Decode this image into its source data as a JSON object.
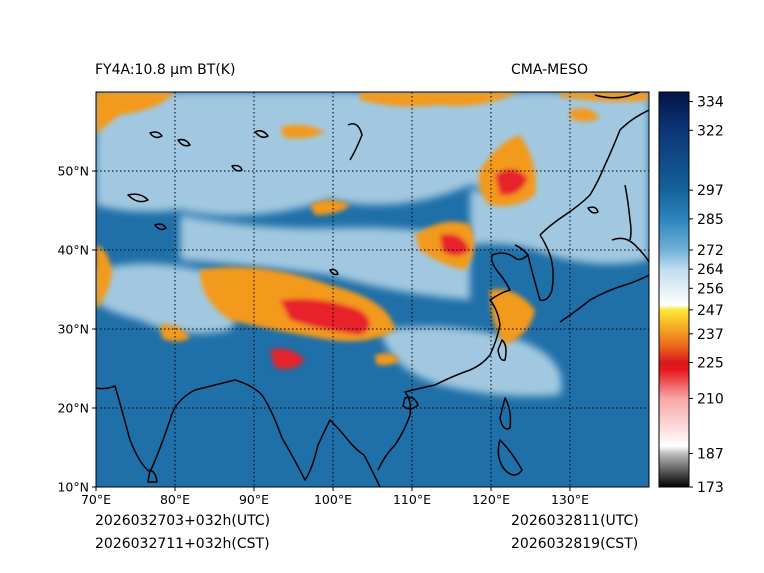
{
  "title_left": "FY4A:10.8 µm BT(K)",
  "title_right": "CMA-MESO",
  "footer": {
    "init_utc": "2026032703+032h(UTC)",
    "init_cst": "2026032711+032h(CST)",
    "valid_utc": "2026032811(UTC)",
    "valid_cst": "2026032819(CST)"
  },
  "map": {
    "lon_range": [
      70,
      140
    ],
    "lat_range": [
      10,
      60
    ],
    "lon_ticks": [
      {
        "value": 70,
        "label": "70°E"
      },
      {
        "value": 80,
        "label": "80°E"
      },
      {
        "value": 90,
        "label": "90°E"
      },
      {
        "value": 100,
        "label": "100°E"
      },
      {
        "value": 110,
        "label": "110°E"
      },
      {
        "value": 120,
        "label": "120°E"
      },
      {
        "value": 130,
        "label": "130°E"
      }
    ],
    "lat_ticks": [
      {
        "value": 10,
        "label": "10°N"
      },
      {
        "value": 20,
        "label": "20°N"
      },
      {
        "value": 30,
        "label": "30°N"
      },
      {
        "value": 40,
        "label": "40°N"
      },
      {
        "value": 50,
        "label": "50°N"
      }
    ],
    "grid": "dotted",
    "colors": {
      "sea": "#1f6fa8",
      "clear_land": "#2d7fb5",
      "thin_cloud": "#a9cde3",
      "cold_orange": "#f39a1e",
      "cold_red": "#e8232a",
      "coast": "#000000"
    }
  },
  "colorbar": {
    "min": 173,
    "max": 338,
    "ticks": [
      334,
      322,
      297,
      285,
      272,
      264,
      256,
      247,
      237,
      225,
      210,
      187,
      173
    ],
    "stops": [
      {
        "value": 173,
        "color": "#000000"
      },
      {
        "value": 187,
        "color": "#bdbdbd"
      },
      {
        "value": 190,
        "color": "#ffffff"
      },
      {
        "value": 210,
        "color": "#f7a5a5"
      },
      {
        "value": 222,
        "color": "#e8171e"
      },
      {
        "value": 225,
        "color": "#d7191c"
      },
      {
        "value": 232,
        "color": "#ec6a1a"
      },
      {
        "value": 244,
        "color": "#fbd02a"
      },
      {
        "value": 247,
        "color": "#fde83a"
      },
      {
        "value": 249,
        "color": "#ffffff"
      },
      {
        "value": 264,
        "color": "#c0dced"
      },
      {
        "value": 272,
        "color": "#72b0d8"
      },
      {
        "value": 285,
        "color": "#2d84be"
      },
      {
        "value": 297,
        "color": "#14629a"
      },
      {
        "value": 322,
        "color": "#0c3577"
      },
      {
        "value": 338,
        "color": "#041447"
      }
    ]
  }
}
